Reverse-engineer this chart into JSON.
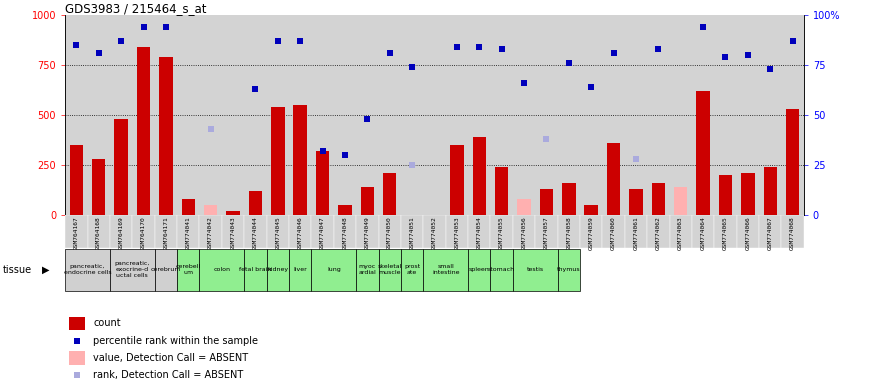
{
  "title": "GDS3983 / 215464_s_at",
  "samples": [
    "GSM764167",
    "GSM764168",
    "GSM764169",
    "GSM764170",
    "GSM764171",
    "GSM774041",
    "GSM774042",
    "GSM774043",
    "GSM774044",
    "GSM774045",
    "GSM774046",
    "GSM774047",
    "GSM774048",
    "GSM774049",
    "GSM774050",
    "GSM774051",
    "GSM774052",
    "GSM774053",
    "GSM774054",
    "GSM774055",
    "GSM774056",
    "GSM774057",
    "GSM774058",
    "GSM774059",
    "GSM774060",
    "GSM774061",
    "GSM774062",
    "GSM774063",
    "GSM774064",
    "GSM774065",
    "GSM774066",
    "GSM774067",
    "GSM774068"
  ],
  "count_values": [
    350,
    280,
    480,
    840,
    790,
    80,
    null,
    20,
    120,
    540,
    550,
    320,
    50,
    140,
    210,
    null,
    null,
    350,
    390,
    240,
    null,
    130,
    160,
    50,
    360,
    130,
    160,
    null,
    620,
    200,
    210,
    240,
    530
  ],
  "absent_count_values": [
    null,
    null,
    null,
    null,
    null,
    null,
    50,
    null,
    null,
    null,
    null,
    null,
    null,
    null,
    null,
    null,
    null,
    null,
    null,
    null,
    80,
    null,
    null,
    null,
    null,
    null,
    null,
    140,
    null,
    null,
    null,
    null,
    null
  ],
  "rank_values": [
    850,
    810,
    870,
    940,
    940,
    null,
    430,
    null,
    630,
    870,
    870,
    320,
    300,
    480,
    810,
    740,
    null,
    840,
    840,
    830,
    660,
    null,
    760,
    640,
    810,
    null,
    830,
    null,
    940,
    790,
    800,
    730,
    870
  ],
  "absent_rank_values": [
    null,
    null,
    null,
    null,
    null,
    null,
    430,
    null,
    null,
    null,
    null,
    null,
    null,
    null,
    null,
    250,
    null,
    null,
    null,
    null,
    null,
    380,
    null,
    null,
    null,
    280,
    null,
    null,
    null,
    null,
    null,
    null,
    null
  ],
  "tissues": [
    {
      "name": "pancreatic,\nendocrine cells",
      "start": 0,
      "end": 2,
      "color": "#d0d0d0"
    },
    {
      "name": "pancreatic,\nexocrine-d\nuctal cells",
      "start": 2,
      "end": 4,
      "color": "#d0d0d0"
    },
    {
      "name": "cerebrum",
      "start": 4,
      "end": 5,
      "color": "#d0d0d0"
    },
    {
      "name": "cerebell\num",
      "start": 5,
      "end": 6,
      "color": "#90EE90"
    },
    {
      "name": "colon",
      "start": 6,
      "end": 8,
      "color": "#90EE90"
    },
    {
      "name": "fetal brain",
      "start": 8,
      "end": 9,
      "color": "#90EE90"
    },
    {
      "name": "kidney",
      "start": 9,
      "end": 10,
      "color": "#90EE90"
    },
    {
      "name": "liver",
      "start": 10,
      "end": 11,
      "color": "#90EE90"
    },
    {
      "name": "lung",
      "start": 11,
      "end": 13,
      "color": "#90EE90"
    },
    {
      "name": "myoc\nardial",
      "start": 13,
      "end": 14,
      "color": "#90EE90"
    },
    {
      "name": "skeletal\nmuscle",
      "start": 14,
      "end": 15,
      "color": "#90EE90"
    },
    {
      "name": "prost\nate",
      "start": 15,
      "end": 16,
      "color": "#90EE90"
    },
    {
      "name": "small\nintestine",
      "start": 16,
      "end": 18,
      "color": "#90EE90"
    },
    {
      "name": "spleen",
      "start": 18,
      "end": 19,
      "color": "#90EE90"
    },
    {
      "name": "stomach",
      "start": 19,
      "end": 20,
      "color": "#90EE90"
    },
    {
      "name": "testis",
      "start": 20,
      "end": 22,
      "color": "#90EE90"
    },
    {
      "name": "thymus",
      "start": 22,
      "end": 23,
      "color": "#90EE90"
    }
  ],
  "ylim_left": [
    0,
    1000
  ],
  "ylim_right": [
    0,
    100
  ],
  "yticks_left": [
    0,
    250,
    500,
    750,
    1000
  ],
  "yticks_right": [
    0,
    25,
    50,
    75,
    100
  ],
  "bar_color_red": "#cc0000",
  "bar_color_pink": "#ffb0b0",
  "square_color_blue": "#0000bb",
  "square_color_lightblue": "#aaaadd",
  "bg_color": "#d3d3d3",
  "legend_items": [
    {
      "color": "#cc0000",
      "shape": "rect",
      "label": "count"
    },
    {
      "color": "#0000bb",
      "shape": "square",
      "label": "percentile rank within the sample"
    },
    {
      "color": "#ffb0b0",
      "shape": "rect",
      "label": "value, Detection Call = ABSENT"
    },
    {
      "color": "#aaaadd",
      "shape": "square",
      "label": "rank, Detection Call = ABSENT"
    }
  ]
}
